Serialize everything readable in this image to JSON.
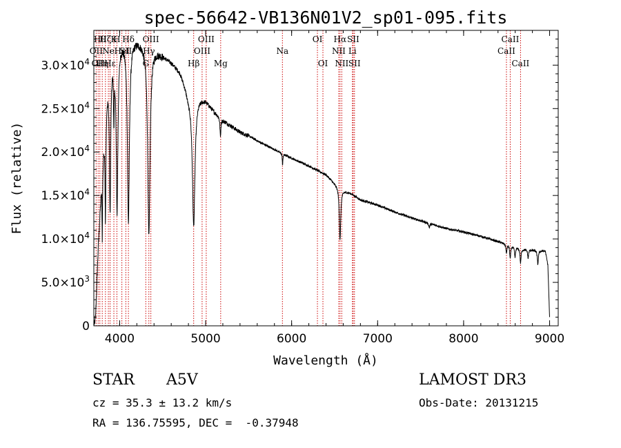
{
  "chart_data": {
    "type": "line",
    "title": "spec-56642-VB136N01V2_sp01-095.fits",
    "xlabel": "Wavelength (Å)",
    "ylabel": "Flux (relative)",
    "xlim": [
      3700,
      9100
    ],
    "ylim": [
      0,
      34000
    ],
    "x_ticks": [
      {
        "value": 4000,
        "label": "4000"
      },
      {
        "value": 5000,
        "label": "5000"
      },
      {
        "value": 6000,
        "label": "6000"
      },
      {
        "value": 7000,
        "label": "7000"
      },
      {
        "value": 8000,
        "label": "8000"
      },
      {
        "value": 9000,
        "label": "9000"
      }
    ],
    "y_ticks": [
      {
        "value": 0,
        "mantissa": "0",
        "exponent": ""
      },
      {
        "value": 5000,
        "mantissa": "5.0×10",
        "exponent": "3"
      },
      {
        "value": 10000,
        "mantissa": "1.0×10",
        "exponent": "4"
      },
      {
        "value": 15000,
        "mantissa": "1.5×10",
        "exponent": "4"
      },
      {
        "value": 20000,
        "mantissa": "2.0×10",
        "exponent": "4"
      },
      {
        "value": 25000,
        "mantissa": "2.5×10",
        "exponent": "4"
      },
      {
        "value": 30000,
        "mantissa": "3.0×10",
        "exponent": "4"
      }
    ],
    "continuum": {
      "x": [
        3700,
        3720,
        3750,
        3800,
        3850,
        3900,
        4000,
        4100,
        4200,
        4300,
        4400,
        4500,
        4600,
        4700,
        4750,
        4800,
        4900,
        5000,
        5100,
        5200,
        5300,
        5400,
        5500,
        5600,
        5800,
        6000,
        6200,
        6400,
        6500,
        6600,
        6700,
        6800,
        7000,
        7200,
        7400,
        7600,
        7800,
        8000,
        8200,
        8400,
        8500,
        8700,
        8950,
        8980,
        9000
      ],
      "y": [
        0,
        1200,
        9000,
        19000,
        27000,
        31500,
        33000,
        33200,
        33000,
        32500,
        32000,
        31200,
        30400,
        29300,
        28000,
        26500,
        26500,
        26000,
        24700,
        23700,
        23000,
        22300,
        21900,
        21300,
        20300,
        19300,
        18400,
        17400,
        16400,
        15600,
        15200,
        14500,
        13900,
        13100,
        12400,
        11800,
        11200,
        10800,
        10300,
        9700,
        9400,
        8800,
        8600,
        7000,
        900
      ]
    },
    "absorption_lines": [
      {
        "center": 3798,
        "depth": 8000,
        "width": 4
      },
      {
        "center": 3835,
        "depth": 12000,
        "width": 6
      },
      {
        "center": 3889,
        "depth": 17000,
        "width": 9
      },
      {
        "center": 3933,
        "depth": 7000,
        "width": 5
      },
      {
        "center": 3970,
        "depth": 19000,
        "width": 12
      },
      {
        "center": 4102,
        "depth": 21000,
        "width": 14
      },
      {
        "center": 4340,
        "depth": 22000,
        "width": 16
      },
      {
        "center": 4861,
        "depth": 15000,
        "width": 18
      },
      {
        "center": 5172,
        "depth": 2200,
        "width": 6
      },
      {
        "center": 5895,
        "depth": 1400,
        "width": 4
      },
      {
        "center": 6563,
        "depth": 6000,
        "width": 10
      },
      {
        "center": 7600,
        "depth": 450,
        "width": 8
      },
      {
        "center": 8498,
        "depth": 1100,
        "width": 6
      },
      {
        "center": 8542,
        "depth": 1500,
        "width": 7
      },
      {
        "center": 8598,
        "depth": 1200,
        "width": 7
      },
      {
        "center": 8662,
        "depth": 1700,
        "width": 7
      },
      {
        "center": 8750,
        "depth": 1000,
        "width": 6
      },
      {
        "center": 8863,
        "depth": 1600,
        "width": 7
      }
    ],
    "line_markers": [
      {
        "wavelength": 3727,
        "label": "OII",
        "row": 2
      },
      {
        "wavelength": 3750,
        "label": "OII",
        "row": 3
      },
      {
        "wavelength": 3770,
        "label": "Hθ",
        "row": 1
      },
      {
        "wavelength": 3798,
        "label": "Hη",
        "row": 3
      },
      {
        "wavelength": 3835,
        "label": "Hζ",
        "row": 1
      },
      {
        "wavelength": 3869,
        "label": "Ne",
        "row": 2
      },
      {
        "wavelength": 3889,
        "label": "Hε",
        "row": 3
      },
      {
        "wavelength": 3933,
        "label": "K",
        "row": 1
      },
      {
        "wavelength": 3968,
        "label": "H",
        "row": 1
      },
      {
        "wavelength": 4026,
        "label": "HeI",
        "row": 2
      },
      {
        "wavelength": 4072,
        "label": "SII",
        "row": 2
      },
      {
        "wavelength": 4102,
        "label": "Hδ",
        "row": 1
      },
      {
        "wavelength": 4304,
        "label": "G",
        "row": 3
      },
      {
        "wavelength": 4340,
        "label": "Hγ",
        "row": 2
      },
      {
        "wavelength": 4363,
        "label": "OIII",
        "row": 1
      },
      {
        "wavelength": 4861,
        "label": "Hβ",
        "row": 3
      },
      {
        "wavelength": 4959,
        "label": "OIII",
        "row": 2
      },
      {
        "wavelength": 5007,
        "label": "OIII",
        "row": 1
      },
      {
        "wavelength": 5175,
        "label": "Mg",
        "row": 3
      },
      {
        "wavelength": 5893,
        "label": "Na",
        "row": 2
      },
      {
        "wavelength": 6300,
        "label": "OI",
        "row": 1
      },
      {
        "wavelength": 6364,
        "label": "OI",
        "row": 3
      },
      {
        "wavelength": 6548,
        "label": "NII",
        "row": 2
      },
      {
        "wavelength": 6563,
        "label": "Hα",
        "row": 1
      },
      {
        "wavelength": 6583,
        "label": "NII",
        "row": 3
      },
      {
        "wavelength": 6707,
        "label": "Li",
        "row": 2
      },
      {
        "wavelength": 6716,
        "label": "SII",
        "row": 1
      },
      {
        "wavelength": 6731,
        "label": "SII",
        "row": 3
      },
      {
        "wavelength": 8498,
        "label": "CaII",
        "row": 2
      },
      {
        "wavelength": 8542,
        "label": "CaII",
        "row": 1
      },
      {
        "wavelength": 8662,
        "label": "CaII",
        "row": 3
      }
    ],
    "marker_color": "#cc0000",
    "spectrum_color": "#000000"
  },
  "info": {
    "object_class": "STAR",
    "subclass": "A5V",
    "survey": "LAMOST DR3",
    "redshift": "cz = 35.3 ± 13.2 km/s",
    "obs_date": "Obs-Date: 20131215",
    "coords": "RA = 136.75595, DEC =  -0.37948"
  }
}
